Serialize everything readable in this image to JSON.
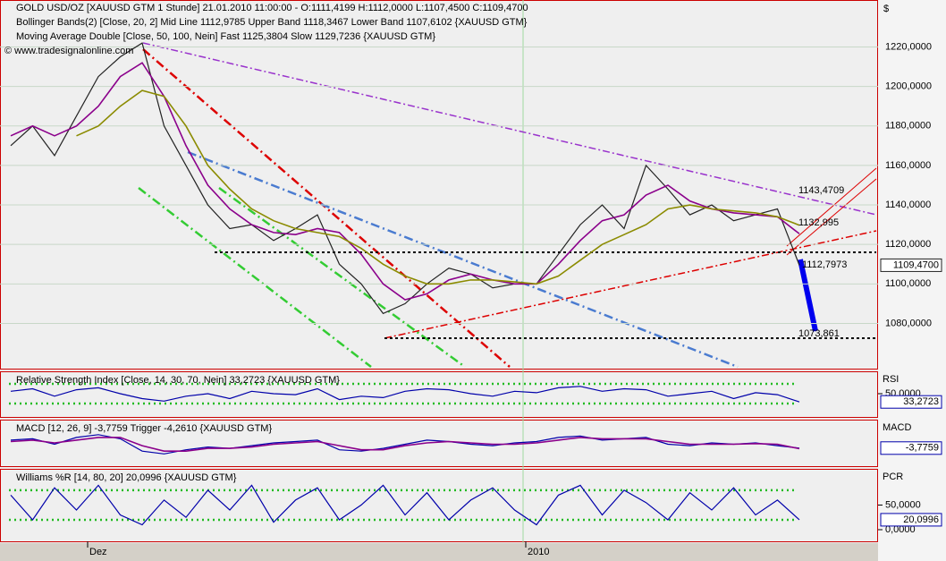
{
  "chart_data": [
    {
      "type": "line",
      "title": "GOLD USD/OZ [XAUUSD GTM  1 Stunde] 21.01.2010 11:00:00 - O:1111,4199 H:1112,0000 L:1107,4500 C:1109,4700",
      "subtitles": [
        "Bollinger Bands(2) [Close, 20, 2] Mid Line 1112,9785 Upper Band 1118,3467 Lower Band 1107,6102 {XAUUSD GTM}",
        "Moving Average Double [Close, 50, 100, Nein] Fast 1125,3804 Slow 1129,7236 {XAUUSD GTM}",
        "© www.tradesignalonline.com"
      ],
      "y_label": "$",
      "annotations": [
        "1143,4709",
        "1132,995",
        "1112,7973",
        "1073,861"
      ],
      "categories": [
        null,
        null,
        null,
        null,
        "Dez",
        null,
        null,
        null,
        null,
        null,
        null,
        null,
        null,
        null,
        null,
        null,
        null,
        null,
        null,
        null,
        null,
        null,
        null,
        null,
        "2010",
        null,
        null,
        null,
        null,
        null,
        null,
        null,
        null,
        null,
        null,
        null,
        null
      ],
      "series": [
        {
          "name": "Close",
          "color": "#222222",
          "last_value_label": "1109,4700",
          "values": [
            1170,
            1180,
            1165,
            1185,
            1205,
            1215,
            1222,
            1180,
            1160,
            1140,
            1128,
            1130,
            1122,
            1128,
            1135,
            1110,
            1100,
            1085,
            1090,
            1100,
            1108,
            1105,
            1098,
            1100,
            1100,
            1115,
            1130,
            1140,
            1128,
            1160,
            1148,
            1135,
            1140,
            1132,
            1135,
            1138,
            1109.47
          ]
        },
        {
          "name": "Fast",
          "color": "#8b008b",
          "values": [
            1175,
            1180,
            1175,
            1180,
            1190,
            1205,
            1212,
            1195,
            1170,
            1150,
            1138,
            1130,
            1126,
            1125,
            1128,
            1126,
            1115,
            1100,
            1092,
            1095,
            1102,
            1105,
            1102,
            1100,
            1100,
            1110,
            1122,
            1132,
            1135,
            1145,
            1150,
            1142,
            1138,
            1136,
            1135,
            1134,
            1125.38
          ]
        },
        {
          "name": "Slow",
          "color": "#8b8b00",
          "values": [
            null,
            null,
            null,
            1175,
            1180,
            1190,
            1198,
            1195,
            1180,
            1160,
            1148,
            1138,
            1132,
            1128,
            1126,
            1124,
            1118,
            1110,
            1104,
            1100,
            1100,
            1102,
            1102,
            1101,
            1100,
            1104,
            1112,
            1120,
            1125,
            1130,
            1138,
            1140,
            1138,
            1137,
            1136,
            1134,
            1129.72
          ]
        }
      ],
      "ylim": [
        1058,
        1237
      ],
      "yticks": [
        {
          "value": 1080,
          "label": "1080,0000"
        },
        {
          "value": 1100,
          "label": "1100,0000"
        },
        {
          "value": 1120,
          "label": "1120,0000"
        },
        {
          "value": 1140,
          "label": "1140,0000"
        },
        {
          "value": 1160,
          "label": "1160,0000"
        },
        {
          "value": 1180,
          "label": "1180,0000"
        },
        {
          "value": 1200,
          "label": "1200,0000"
        },
        {
          "value": 1220,
          "label": "1220,0000"
        }
      ],
      "grid": true
    },
    {
      "type": "line",
      "title": "Relative Strength Index [Close, 14, 30, 70, Nein] 33,2723 {XAUUSD GTM}",
      "y_label": "RSI",
      "levels": [
        30,
        70
      ],
      "level_color": "#22bb22",
      "series": [
        {
          "name": "RSI",
          "color": "#0000aa",
          "last_value_label": "33,2723",
          "values": [
            55,
            60,
            45,
            58,
            62,
            50,
            40,
            35,
            45,
            50,
            40,
            55,
            50,
            48,
            60,
            38,
            45,
            42,
            55,
            60,
            58,
            50,
            45,
            55,
            52,
            62,
            65,
            55,
            60,
            58,
            45,
            50,
            55,
            40,
            52,
            48,
            33.27
          ]
        }
      ],
      "ylim": [
        10,
        90
      ],
      "yticks": [
        {
          "value": 50,
          "label": "50,0000"
        }
      ]
    },
    {
      "type": "line",
      "title": "MACD [12, 26, 9] -3,7759 Trigger -4,2610 {XAUUSD GTM}",
      "y_label": "MACD",
      "series": [
        {
          "name": "MACD",
          "color": "#0000aa",
          "last_value_label": "-3,7759",
          "values": [
            2,
            3,
            -1,
            4,
            6,
            3,
            -6,
            -8,
            -5,
            -3,
            -4,
            -2,
            0,
            1,
            2,
            -5,
            -6,
            -4,
            -1,
            2,
            1,
            -1,
            -2,
            0,
            1,
            4,
            5,
            2,
            3,
            4,
            -1,
            -2,
            0,
            -1,
            0,
            -2,
            -3.78
          ]
        },
        {
          "name": "Trigger",
          "color": "#8b008b",
          "values": [
            1,
            2,
            0,
            2,
            4,
            4,
            -2,
            -6,
            -6,
            -4,
            -4,
            -3,
            -1,
            0,
            1,
            -2,
            -5,
            -5,
            -2,
            0,
            1,
            0,
            -1,
            -1,
            0,
            2,
            4,
            3,
            3,
            3,
            1,
            -1,
            -1,
            -1,
            -0.5,
            -1,
            -4.26
          ]
        }
      ],
      "ylim": [
        -15,
        15
      ]
    },
    {
      "type": "line",
      "title": "Williams %R [14, 80, 20] 20,0996 {XAUUSD GTM}",
      "y_label": "PCR",
      "levels": [
        20,
        80
      ],
      "level_color": "#22bb22",
      "series": [
        {
          "name": "Williams %R",
          "color": "#0000aa",
          "last_value_label": "20,0996",
          "values": [
            70,
            20,
            85,
            40,
            90,
            30,
            10,
            60,
            25,
            80,
            40,
            90,
            15,
            60,
            85,
            20,
            50,
            90,
            30,
            75,
            20,
            60,
            85,
            40,
            10,
            70,
            90,
            30,
            80,
            55,
            20,
            75,
            40,
            85,
            30,
            60,
            20.1
          ]
        }
      ],
      "ylim": [
        -20,
        118
      ],
      "yticks": [
        {
          "value": 0,
          "label": "0,0000"
        },
        {
          "value": 50,
          "label": "50,0000"
        }
      ]
    }
  ]
}
